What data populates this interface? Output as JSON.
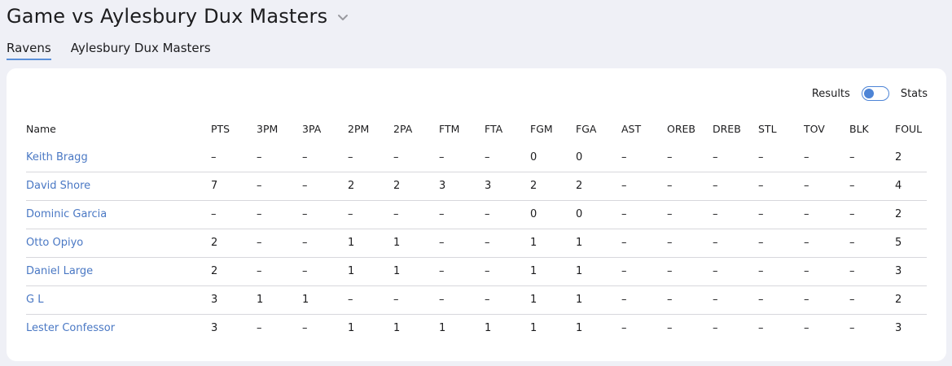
{
  "header": {
    "title": "Game vs Aylesbury Dux Masters"
  },
  "tabs": [
    {
      "label": "Ravens",
      "active": true
    },
    {
      "label": "Aylesbury Dux Masters",
      "active": false
    }
  ],
  "view_toggle": {
    "left_label": "Results",
    "right_label": "Stats",
    "selected": "Results"
  },
  "colors": {
    "accent": "#4a78c4",
    "background": "#eff0f6",
    "card": "#ffffff"
  },
  "table": {
    "columns": [
      "Name",
      "PTS",
      "3PM",
      "3PA",
      "2PM",
      "2PA",
      "FTM",
      "FTA",
      "FGM",
      "FGA",
      "AST",
      "OREB",
      "DREB",
      "STL",
      "TOV",
      "BLK",
      "FOUL"
    ],
    "rows": [
      [
        "Keith Bragg",
        "–",
        "–",
        "–",
        "–",
        "–",
        "–",
        "–",
        "0",
        "0",
        "–",
        "–",
        "–",
        "–",
        "–",
        "–",
        "2"
      ],
      [
        "David Shore",
        "7",
        "–",
        "–",
        "2",
        "2",
        "3",
        "3",
        "2",
        "2",
        "–",
        "–",
        "–",
        "–",
        "–",
        "–",
        "4"
      ],
      [
        "Dominic Garcia",
        "–",
        "–",
        "–",
        "–",
        "–",
        "–",
        "–",
        "0",
        "0",
        "–",
        "–",
        "–",
        "–",
        "–",
        "–",
        "2"
      ],
      [
        "Otto Opiyo",
        "2",
        "–",
        "–",
        "1",
        "1",
        "–",
        "–",
        "1",
        "1",
        "–",
        "–",
        "–",
        "–",
        "–",
        "–",
        "5"
      ],
      [
        "Daniel Large",
        "2",
        "–",
        "–",
        "1",
        "1",
        "–",
        "–",
        "1",
        "1",
        "–",
        "–",
        "–",
        "–",
        "–",
        "–",
        "3"
      ],
      [
        "G L",
        "3",
        "1",
        "1",
        "–",
        "–",
        "–",
        "–",
        "1",
        "1",
        "–",
        "–",
        "–",
        "–",
        "–",
        "–",
        "2"
      ],
      [
        "Lester Confessor",
        "3",
        "–",
        "–",
        "1",
        "1",
        "1",
        "1",
        "1",
        "1",
        "–",
        "–",
        "–",
        "–",
        "–",
        "–",
        "3"
      ]
    ]
  }
}
